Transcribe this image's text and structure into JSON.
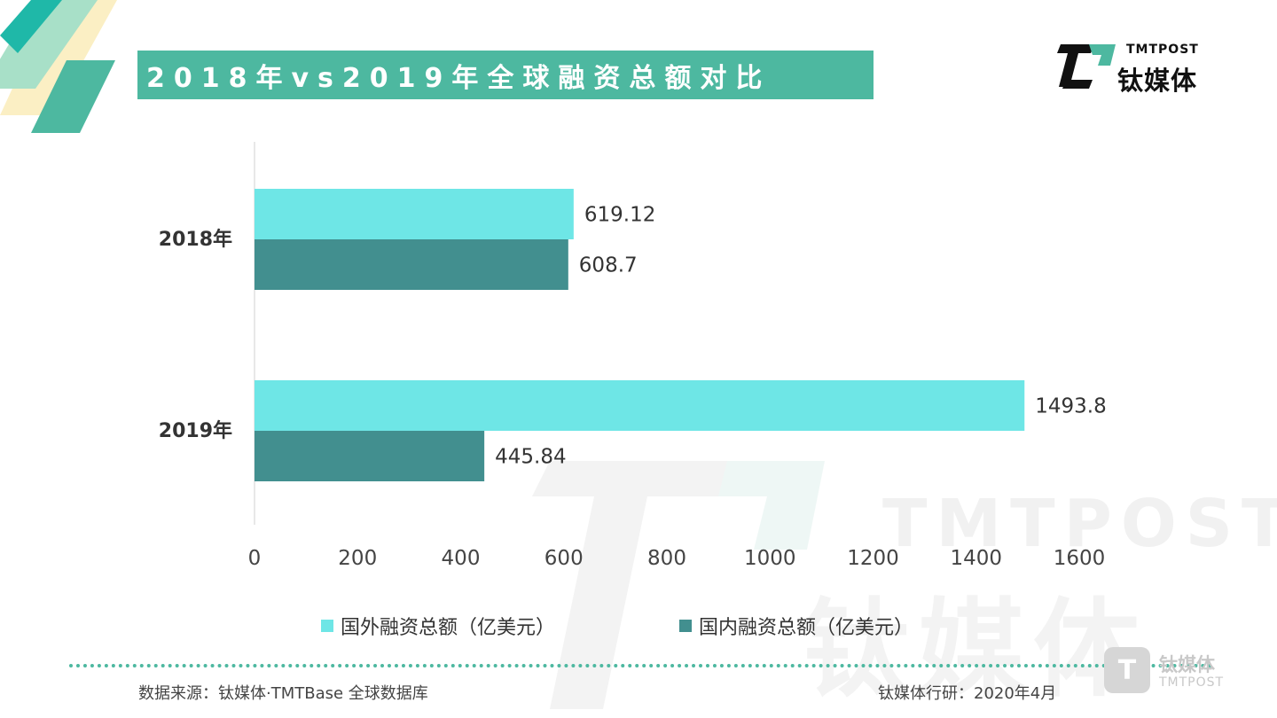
{
  "title": "2018年vs2019年全球融资总额对比",
  "brand": {
    "en": "TMTPOST",
    "cn": "钛媒体",
    "logo_mark": "T"
  },
  "watermark": {
    "en": "TMTPOST",
    "cn": "钛媒体"
  },
  "colors": {
    "accent": "#4db8a0",
    "foreign": "#6ee6e6",
    "domestic": "#428f8f"
  },
  "chart_data": {
    "type": "bar",
    "orientation": "horizontal",
    "categories": [
      "2018年",
      "2019年"
    ],
    "series": [
      {
        "name": "国外融资总额（亿美元）",
        "values": [
          619.12,
          1493.8
        ],
        "labels": [
          "619.12",
          "1493.8"
        ]
      },
      {
        "name": "国内融资总额（亿美元）",
        "values": [
          608.7,
          445.84
        ],
        "labels": [
          "608.7",
          "445.84"
        ]
      }
    ],
    "xlim": [
      0,
      1600
    ],
    "xticks": [
      "0",
      "200",
      "400",
      "600",
      "800",
      "1000",
      "1200",
      "1400",
      "1600"
    ],
    "grid": false,
    "legend": "bottom"
  },
  "footer": {
    "source": "数据来源：钛媒体·TMTBase 全球数据库",
    "research": "钛媒体行研：2020年4月",
    "corner_logo_cn": "钛媒体",
    "corner_logo_en": "TMTPOST"
  }
}
